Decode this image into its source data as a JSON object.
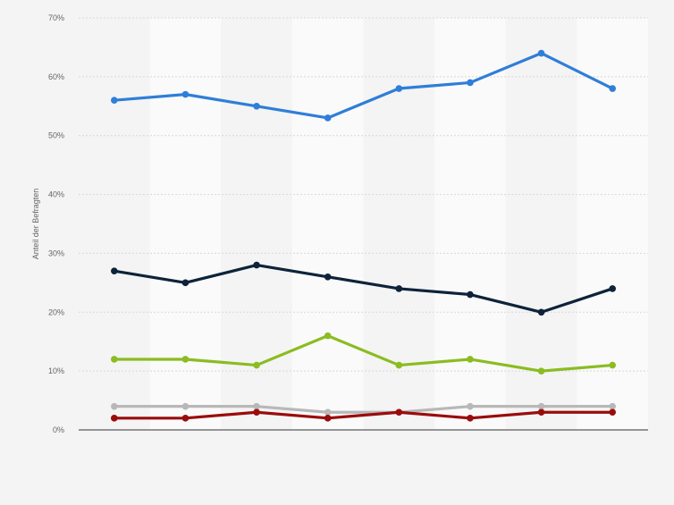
{
  "chart_data": {
    "type": "line",
    "ylabel": "Anteil der Befragten",
    "xlabel": "",
    "title": "",
    "ylim": [
      0,
      70
    ],
    "yticks": [
      0,
      10,
      20,
      30,
      40,
      50,
      60,
      70
    ],
    "ytick_labels": [
      "0%",
      "10%",
      "20%",
      "30%",
      "40%",
      "50%",
      "60%",
      "70%"
    ],
    "categories": [
      "",
      "",
      "",
      "",
      "",
      "",
      "",
      ""
    ],
    "grid": "horizontal dashed",
    "legend": "none",
    "series": [
      {
        "color": "#2f7ed8",
        "values": [
          56,
          57,
          55,
          53,
          58,
          59,
          64,
          58
        ]
      },
      {
        "color": "#0d233a",
        "values": [
          27,
          25,
          28,
          26,
          24,
          23,
          20,
          24
        ]
      },
      {
        "color": "#8bbc21",
        "values": [
          12,
          12,
          11,
          16,
          11,
          12,
          10,
          11
        ]
      },
      {
        "color": "#b8b8b8",
        "values": [
          4,
          4,
          4,
          3,
          3,
          4,
          4,
          4
        ]
      },
      {
        "color": "#9a0c0c",
        "values": [
          2,
          2,
          3,
          2,
          3,
          2,
          3,
          3
        ]
      }
    ]
  }
}
